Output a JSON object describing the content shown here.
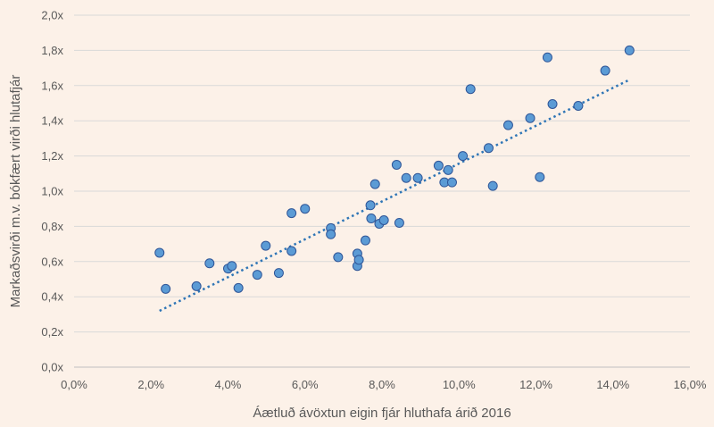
{
  "chart_data": {
    "type": "scatter",
    "title": "",
    "xlabel": "Áætluð ávöxtun eigin fjár hluthafa árið 2016",
    "ylabel": "Markaðsvirði m.v. bókfært virði hlutafjár",
    "xlim": [
      0,
      0.16
    ],
    "ylim": [
      0,
      2.0
    ],
    "x_ticks": [
      0,
      0.02,
      0.04,
      0.06,
      0.08,
      0.1,
      0.12,
      0.14,
      0.16
    ],
    "x_tick_labels": [
      "0,0%",
      "2,0%",
      "4,0%",
      "6,0%",
      "8,0%",
      "10,0%",
      "12,0%",
      "14,0%",
      "16,0%"
    ],
    "y_ticks": [
      0,
      0.2,
      0.4,
      0.6,
      0.8,
      1.0,
      1.2,
      1.4,
      1.6,
      1.8,
      2.0
    ],
    "y_tick_labels": [
      "0,0x",
      "0,2x",
      "0,4x",
      "0,6x",
      "0,8x",
      "1,0x",
      "1,2x",
      "1,4x",
      "1,6x",
      "1,8x",
      "2,0x"
    ],
    "grid": "horizontal",
    "legend": "none",
    "series": [
      {
        "color": "#5b9bd5",
        "points": [
          [
            0.0222,
            0.65
          ],
          [
            0.0238,
            0.445
          ],
          [
            0.0318,
            0.46
          ],
          [
            0.0352,
            0.59
          ],
          [
            0.04,
            0.56
          ],
          [
            0.041,
            0.575
          ],
          [
            0.0427,
            0.45
          ],
          [
            0.0476,
            0.525
          ],
          [
            0.0498,
            0.69
          ],
          [
            0.0532,
            0.535
          ],
          [
            0.0565,
            0.875
          ],
          [
            0.0565,
            0.66
          ],
          [
            0.06,
            0.9
          ],
          [
            0.0667,
            0.79
          ],
          [
            0.0667,
            0.755
          ],
          [
            0.0686,
            0.625
          ],
          [
            0.0736,
            0.645
          ],
          [
            0.0736,
            0.575
          ],
          [
            0.074,
            0.61
          ],
          [
            0.0757,
            0.72
          ],
          [
            0.077,
            0.92
          ],
          [
            0.0772,
            0.845
          ],
          [
            0.0782,
            1.04
          ],
          [
            0.0793,
            0.815
          ],
          [
            0.0805,
            0.835
          ],
          [
            0.0838,
            1.15
          ],
          [
            0.0845,
            0.82
          ],
          [
            0.0863,
            1.075
          ],
          [
            0.0893,
            1.075
          ],
          [
            0.0947,
            1.145
          ],
          [
            0.0962,
            1.05
          ],
          [
            0.0972,
            1.12
          ],
          [
            0.0982,
            1.05
          ],
          [
            0.101,
            1.2
          ],
          [
            0.103,
            1.58
          ],
          [
            0.1077,
            1.245
          ],
          [
            0.1088,
            1.03
          ],
          [
            0.1128,
            1.375
          ],
          [
            0.1185,
            1.415
          ],
          [
            0.121,
            1.08
          ],
          [
            0.123,
            1.76
          ],
          [
            0.1243,
            1.495
          ],
          [
            0.131,
            1.485
          ],
          [
            0.138,
            1.685
          ],
          [
            0.1443,
            1.8
          ]
        ]
      }
    ],
    "trendline": {
      "type": "linear",
      "style": "dotted",
      "color": "#2e75b6",
      "x_start": 0.0222,
      "y_start": 0.32,
      "x_end": 0.144,
      "y_end": 1.63
    }
  }
}
